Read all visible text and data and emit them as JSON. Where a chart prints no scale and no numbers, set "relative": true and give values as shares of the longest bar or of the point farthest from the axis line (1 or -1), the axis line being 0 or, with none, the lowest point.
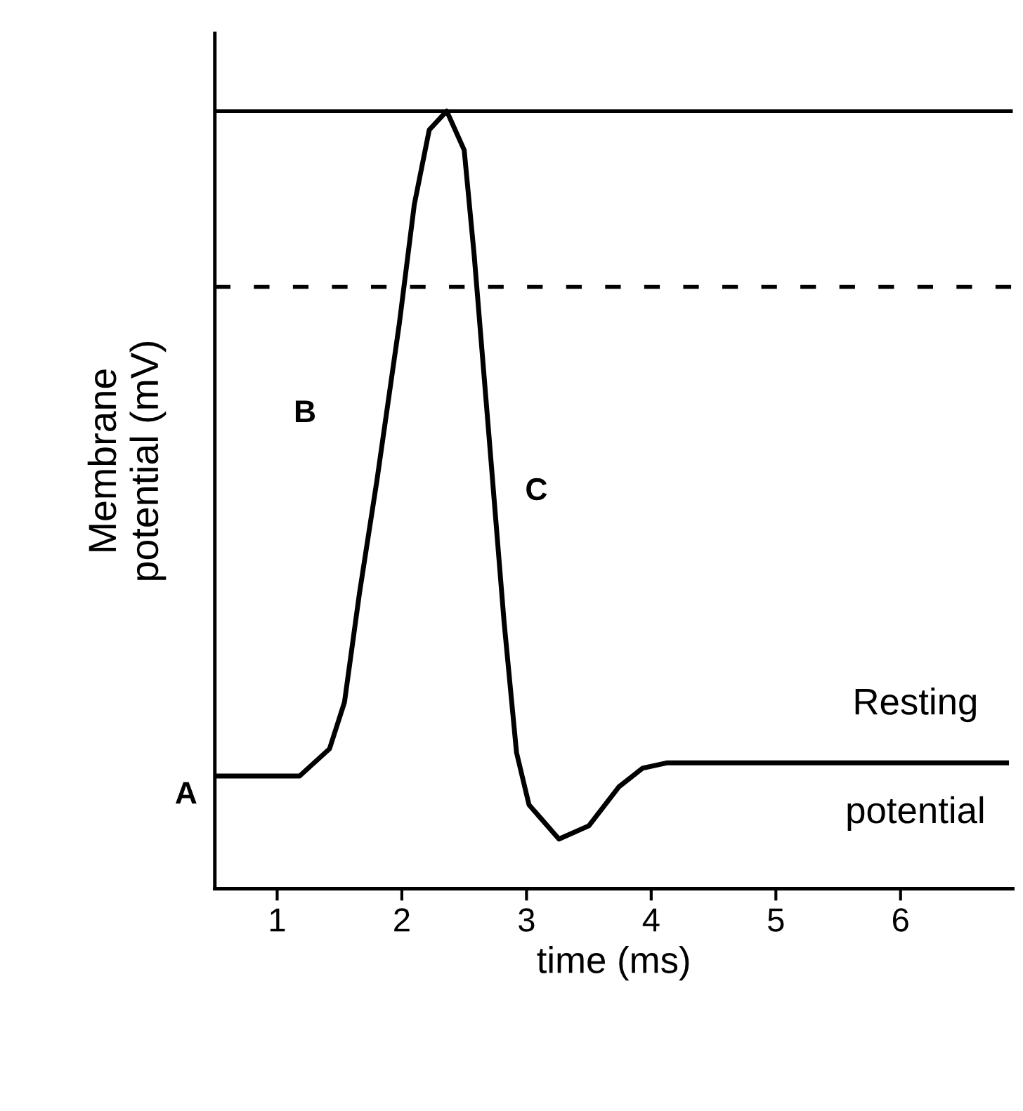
{
  "chart_data": {
    "type": "line",
    "relative": true,
    "xlabel": "time (ms)",
    "ylabel": "Membrane\npotential (mV)",
    "xlim": [
      0.5,
      6.9
    ],
    "xticks": [
      1,
      2,
      3,
      4,
      5,
      6
    ],
    "grid": false,
    "legend": false,
    "marker": "none",
    "line_style": "solid",
    "tick_labels": "x",
    "x": [
      0.5,
      1.18,
      1.42,
      1.54,
      1.66,
      1.8,
      1.98,
      2.1,
      2.22,
      2.36,
      2.5,
      2.58,
      2.7,
      2.82,
      2.92,
      3.02,
      3.26,
      3.5,
      3.74,
      3.93,
      4.13,
      6.85
    ],
    "series": [
      {
        "color": "#000000",
        "values": [
          0.145,
          0.145,
          0.18,
          0.24,
          0.38,
          0.525,
          0.727,
          0.88,
          0.976,
          1.0,
          0.95,
          0.815,
          0.58,
          0.343,
          0.175,
          0.108,
          0.064,
          0.081,
          0.131,
          0.155,
          0.162,
          0.162
        ]
      }
    ],
    "ref_lines": [
      {
        "axis": "y",
        "value": 1.0,
        "color": "#000000",
        "line_style": "solid"
      },
      {
        "axis": "y",
        "value": 0.774,
        "color": "#000000",
        "line_style": "dashed"
      }
    ],
    "annotations": [
      "A",
      "B",
      "C",
      "Resting",
      "potential"
    ]
  }
}
